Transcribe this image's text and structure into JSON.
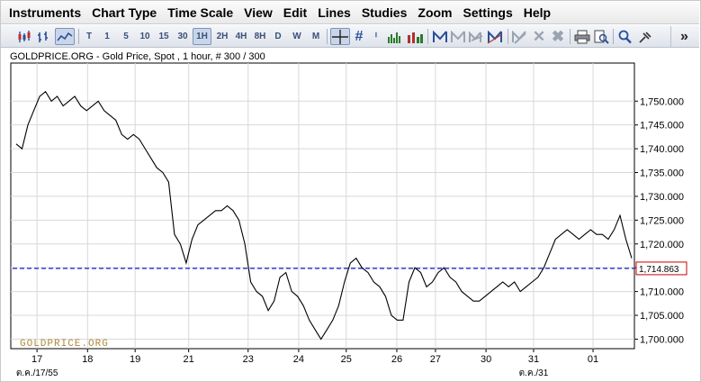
{
  "menu": [
    "Instruments",
    "Chart Type",
    "Time Scale",
    "View",
    "Edit",
    "Lines",
    "Studies",
    "Zoom",
    "Settings",
    "Help"
  ],
  "toolbar": {
    "interval_buttons": [
      "T",
      "1",
      "5",
      "10",
      "15",
      "30",
      "1H",
      "2H",
      "4H",
      "8H",
      "D",
      "W",
      "M"
    ],
    "active_interval": "1H",
    "more_label": "»",
    "icons": [
      "candlestick-icon",
      "bar-chart-icon",
      "line-chart-icon",
      "crosshair-icon",
      "grid-icon",
      "info-icon",
      "volume-icon",
      "line-tool-icon",
      "line-tool-disabled-icon",
      "parallel-tool-icon",
      "trend-tool-icon",
      "delete-tool-icon",
      "close-icon",
      "delete-all-icon",
      "print-icon",
      "print-preview-icon",
      "zoom-icon",
      "pin-icon"
    ]
  },
  "chart_header": "GOLDPRICE.ORG - Gold Price, Spot , 1 hour, # 300 / 300",
  "watermark": "GOLDPRICE.ORG",
  "current_price_label": "1,714.863",
  "colors": {
    "price_line": "#000000",
    "current_price_line": "#1a1acc",
    "current_price_box": "#cc0000",
    "grid": "#d8d8d8",
    "watermark": "#b08a3c"
  },
  "chart_data": {
    "type": "line",
    "title": "GOLDPRICE.ORG - Gold Price, Spot , 1 hour, # 300 / 300",
    "y_axis_side": "right",
    "ylim": [
      1698,
      1758
    ],
    "yticks": [
      1700,
      1705,
      1710,
      1715,
      1720,
      1725,
      1730,
      1735,
      1740,
      1745,
      1750
    ],
    "ytick_labels": [
      "1,700.000",
      "1,705.000",
      "1,710.000",
      "1,715.000",
      "1,720.000",
      "1,725.000",
      "1,730.000",
      "1,735.000",
      "1,740.000",
      "1,745.000",
      "1,750.000"
    ],
    "xlim": [
      0,
      300
    ],
    "x_ticks": [
      {
        "x": 7,
        "label": "17"
      },
      {
        "x": 24,
        "label": "18"
      },
      {
        "x": 40,
        "label": "19"
      },
      {
        "x": 58,
        "label": "21"
      },
      {
        "x": 78,
        "label": "23"
      },
      {
        "x": 95,
        "label": "24"
      },
      {
        "x": 111,
        "label": "25"
      },
      {
        "x": 128,
        "label": "26"
      },
      {
        "x": 141,
        "label": "27"
      },
      {
        "x": 158,
        "label": "30"
      },
      {
        "x": 174,
        "label": "31"
      },
      {
        "x": 194,
        "label": "01"
      }
    ],
    "month_labels": [
      {
        "x": 7,
        "label": "ต.ค./17/55"
      },
      {
        "x": 174,
        "label": "ต.ค./31"
      }
    ],
    "grid": true,
    "current_price": 1714.863,
    "series": [
      {
        "x": [
          0,
          2,
          4,
          6,
          8,
          10,
          12,
          14,
          16,
          18,
          20,
          22,
          24,
          26,
          28,
          30,
          32,
          34,
          36,
          38,
          40,
          42,
          44,
          46,
          48,
          50,
          52,
          54,
          56,
          58,
          60,
          62,
          64,
          66,
          68,
          70,
          72,
          74,
          76,
          78,
          80,
          82,
          84,
          86,
          88,
          90,
          92,
          94,
          96,
          98,
          100,
          102,
          104,
          106,
          108,
          110,
          112,
          114,
          116,
          118,
          120,
          122,
          124,
          126,
          128,
          130,
          132,
          134,
          136,
          138,
          140,
          142,
          144,
          146,
          148,
          150,
          152,
          154,
          156,
          158,
          160,
          162,
          164,
          166,
          168,
          170,
          172,
          174,
          176,
          178,
          180,
          182,
          184,
          186,
          188,
          190,
          192,
          194,
          196,
          198,
          200,
          202,
          204,
          206,
          208,
          210
        ],
        "values": [
          1741,
          1740,
          1745,
          1748,
          1751,
          1752,
          1750,
          1751,
          1749,
          1750,
          1751,
          1749,
          1748,
          1749,
          1750,
          1748,
          1747,
          1746,
          1743,
          1742,
          1743,
          1742,
          1740,
          1738,
          1736,
          1735,
          1733,
          1722,
          1720,
          1716,
          1721,
          1724,
          1725,
          1726,
          1727,
          1727,
          1728,
          1727,
          1725,
          1720,
          1712,
          1710,
          1709,
          1706,
          1708,
          1713,
          1714,
          1710,
          1709,
          1707,
          1704,
          1702,
          1700,
          1702,
          1704,
          1707,
          1712,
          1716,
          1717,
          1715,
          1714,
          1712,
          1711,
          1709,
          1705,
          1704,
          1704,
          1712,
          1715,
          1714,
          1711,
          1712,
          1714,
          1715,
          1713,
          1712,
          1710,
          1709,
          1708,
          1708,
          1709,
          1710,
          1711,
          1712,
          1711,
          1712,
          1710,
          1711,
          1712,
          1713,
          1715,
          1718,
          1721,
          1722,
          1723,
          1722,
          1721,
          1722,
          1723,
          1722,
          1722,
          1721,
          1723,
          1726,
          1721,
          1717
        ]
      }
    ]
  }
}
